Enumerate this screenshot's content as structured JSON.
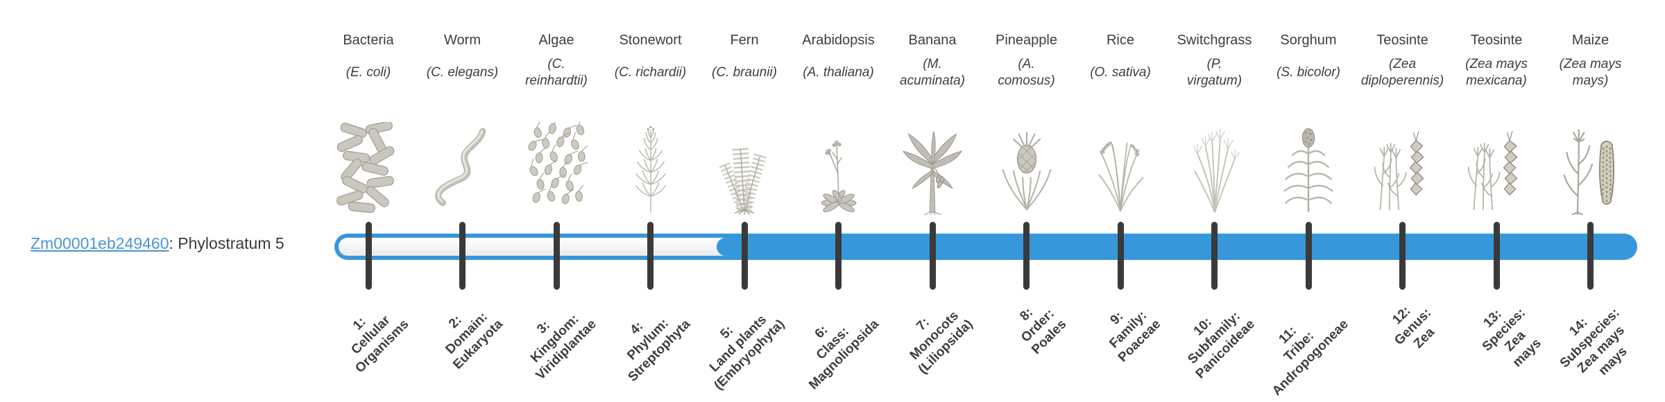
{
  "gene": {
    "id": "Zm00001eb249460",
    "label_suffix": ": Phylostratum 5",
    "phylostratum": "5"
  },
  "timeline": {
    "total_strata": 14,
    "filled_from_stratum": 5
  },
  "colors": {
    "bar_blue": "#3797db",
    "bar_empty_top": "#ffffff",
    "bar_empty_bottom": "#ebebeb",
    "tick": "#3a3a3a",
    "text": "#3d3d3d",
    "link": "#4a94d6"
  },
  "organisms": [
    {
      "common": "Bacteria",
      "scientific": "(E. coli)",
      "icon": "bacteria"
    },
    {
      "common": "Worm",
      "scientific": "(C. elegans)",
      "icon": "worm"
    },
    {
      "common": "Algae",
      "scientific": "(C.\nreinhardtii)",
      "icon": "algae"
    },
    {
      "common": "Stonewort",
      "scientific": "(C. richardii)",
      "icon": "stonewort"
    },
    {
      "common": "Fern",
      "scientific": "(C. braunii)",
      "icon": "fern"
    },
    {
      "common": "Arabidopsis",
      "scientific": "(A. thaliana)",
      "icon": "arabidopsis"
    },
    {
      "common": "Banana",
      "scientific": "(M.\nacuminata)",
      "icon": "banana"
    },
    {
      "common": "Pineapple",
      "scientific": "(A.\ncomosus)",
      "icon": "pineapple"
    },
    {
      "common": "Rice",
      "scientific": "(O. sativa)",
      "icon": "rice"
    },
    {
      "common": "Switchgrass",
      "scientific": "(P.\nvirgatum)",
      "icon": "switchgrass"
    },
    {
      "common": "Sorghum",
      "scientific": "(S. bicolor)",
      "icon": "sorghum"
    },
    {
      "common": "Teosinte",
      "scientific": "(Zea\ndiploperennis)",
      "icon": "teosinte"
    },
    {
      "common": "Teosinte",
      "scientific": "(Zea mays\nmexicana)",
      "icon": "teosinte"
    },
    {
      "common": "Maize",
      "scientific": "(Zea mays\nmays)",
      "icon": "maize"
    }
  ],
  "strata": [
    {
      "num": 1,
      "filled": false,
      "label": "1:\nCellular\nOrganisms"
    },
    {
      "num": 2,
      "filled": false,
      "label": "2:\nDomain:\nEukaryota"
    },
    {
      "num": 3,
      "filled": false,
      "label": "3:\nKingdom:\nViridiplantae"
    },
    {
      "num": 4,
      "filled": false,
      "label": "4:\nPhylum:\nStreptophyta"
    },
    {
      "num": 5,
      "filled": true,
      "label": "5:\nLand plants\n(Embryophyta)"
    },
    {
      "num": 6,
      "filled": true,
      "label": "6:\nClass:\nMagnoliopsida"
    },
    {
      "num": 7,
      "filled": true,
      "label": "7:\nMonocots\n(Liliopsida)"
    },
    {
      "num": 8,
      "filled": true,
      "label": "8:\nOrder:\nPoales"
    },
    {
      "num": 9,
      "filled": true,
      "label": "9:\nFamily:\nPoaceae"
    },
    {
      "num": 10,
      "filled": true,
      "label": "10:\nSubfamily:\nPanicoideae"
    },
    {
      "num": 11,
      "filled": true,
      "label": "11:\nTribe:\nAndropogoneae"
    },
    {
      "num": 12,
      "filled": true,
      "label": "12:\nGenus:\nZea"
    },
    {
      "num": 13,
      "filled": true,
      "label": "13:\nSpecies:\nZea\nmays"
    },
    {
      "num": 14,
      "filled": true,
      "label": "14:\nSubspecies:\nZea mays\nmays"
    }
  ]
}
